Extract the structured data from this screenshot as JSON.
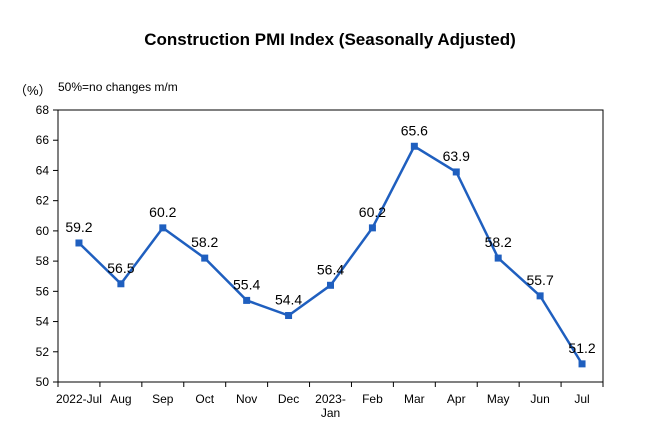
{
  "chart_data": {
    "type": "line",
    "title": "Construction PMI Index (Seasonally Adjusted)",
    "y_unit": "（%）",
    "note": "50%=no changes m/m",
    "categories": [
      [
        "2022-Jul"
      ],
      [
        "Aug"
      ],
      [
        "Sep"
      ],
      [
        "Oct"
      ],
      [
        "Nov"
      ],
      [
        "Dec"
      ],
      [
        "2023-",
        "Jan"
      ],
      [
        "Feb"
      ],
      [
        "Mar"
      ],
      [
        "Apr"
      ],
      [
        "May"
      ],
      [
        "Jun"
      ],
      [
        "Jul"
      ]
    ],
    "values": [
      59.2,
      56.5,
      60.2,
      58.2,
      55.4,
      54.4,
      56.4,
      60.2,
      65.6,
      63.9,
      58.2,
      55.7,
      51.2
    ],
    "value_labels": [
      "59.2",
      "56.5",
      "60.2",
      "58.2",
      "55.4",
      "54.4",
      "56.4",
      "60.2",
      "65.6",
      "63.9",
      "58.2",
      "55.7",
      "51.2"
    ],
    "ylim": [
      50,
      68
    ],
    "yticks": [
      "50",
      "52",
      "54",
      "56",
      "58",
      "60",
      "62",
      "64",
      "66",
      "68"
    ],
    "grid": false,
    "legend": "none",
    "colors": {
      "line": "#1F5FBF",
      "axis": "#000000"
    }
  }
}
